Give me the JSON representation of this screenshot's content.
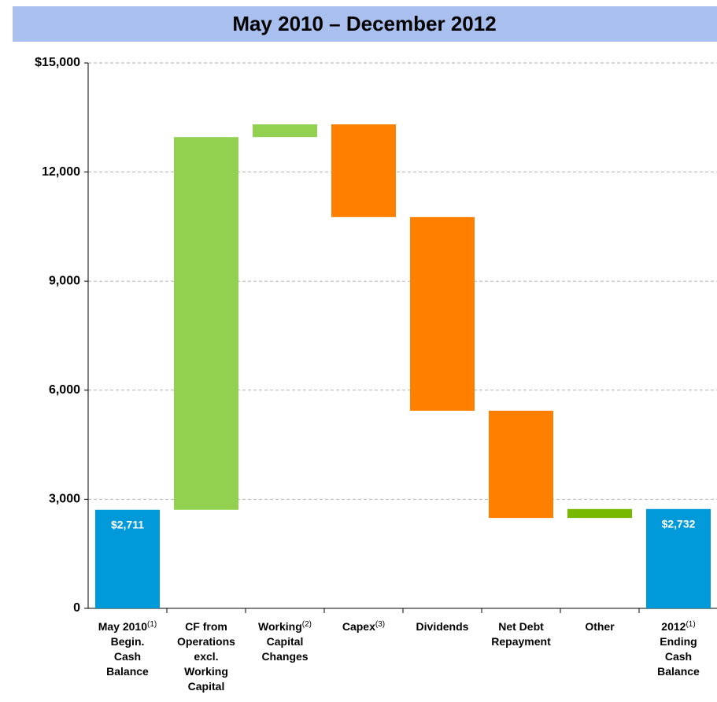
{
  "chart_data": {
    "type": "waterfall",
    "title": "May 2010 – December 2012",
    "categories": [
      [
        "May 2010",
        "Begin.",
        "Cash",
        "Balance"
      ],
      [
        "CF from",
        "Operations",
        "excl.",
        "Working",
        "Capital"
      ],
      [
        "Working",
        "Capital",
        "Changes"
      ],
      [
        "Capex"
      ],
      [
        "Dividends"
      ],
      [
        "Net Debt",
        "Repayment"
      ],
      [
        "Other"
      ],
      [
        "2012",
        "Ending",
        "Cash",
        "Balance"
      ]
    ],
    "category_notes": [
      "(1)",
      null,
      "(2)",
      "(3)",
      null,
      null,
      null,
      "(1)"
    ],
    "values": [
      2711,
      10250,
      350,
      -2550,
      -5325,
      -2950,
      246,
      2732
    ],
    "value_labels": [
      "$2,711",
      null,
      null,
      null,
      null,
      null,
      null,
      "$2,732"
    ],
    "kinds": [
      "total",
      "delta",
      "delta",
      "delta",
      "delta",
      "delta",
      "delta",
      "total"
    ],
    "colors": [
      "#0099da",
      "#92d050",
      "#92d050",
      "#ff7f00",
      "#ff7f00",
      "#ff7f00",
      "#76b900",
      "#0099da"
    ],
    "ylim": [
      0,
      15000
    ],
    "yticks": [
      0,
      {
        "value": 3000,
        "label": "3,000"
      },
      {
        "value": 6000,
        "label": "6,000"
      },
      {
        "value": 9000,
        "label": "9,000"
      },
      {
        "value": 12000,
        "label": "12,000"
      },
      {
        "value": 15000,
        "label": "$15,000"
      }
    ],
    "grid": true
  }
}
